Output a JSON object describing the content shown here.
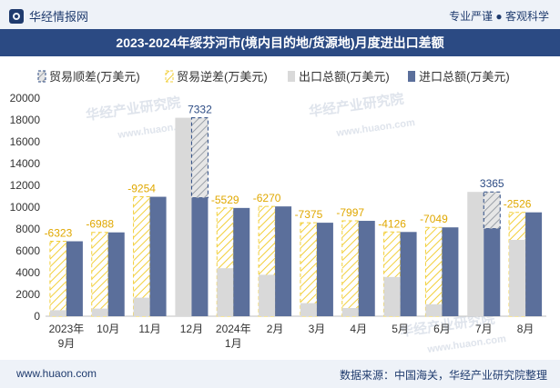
{
  "header": {
    "brand": "华经情报网",
    "tagline": "专业严谨 ● 客观科学",
    "title": "2023-2024年绥芬河市(境内目的地/货源地)月度进出口差额"
  },
  "footer": {
    "site": "www.huaon.com",
    "source": "数据来源：中国海关，华经产业研究院整理"
  },
  "watermarks": [
    "华经产业研究院",
    "www.huaon.com",
    "华经产业研究院",
    "www.huaon.com",
    "华经产业研究院",
    "www.huaon.com"
  ],
  "colors": {
    "brand": "#1f3b6e",
    "title_bg": "#2b4a83",
    "surplus": "#2b4a83",
    "deficit": "#f2cf3a",
    "export": "#d9d9d9",
    "import": "#5b6f9b"
  },
  "chart_data": {
    "type": "bar",
    "title": "2023-2024年绥芬河市(境内目的地/货源地)月度进出口差额",
    "categories": [
      "2023年\n9月",
      "10月",
      "11月",
      "12月",
      "2024年\n1月",
      "2月",
      "3月",
      "4月",
      "5月",
      "6月",
      "7月",
      "8月"
    ],
    "series": [
      {
        "name": "出口总额(万美元)",
        "values": [
          550,
          700,
          1700,
          18200,
          4400,
          3800,
          1200,
          750,
          3600,
          1100,
          11400,
          7000
        ]
      },
      {
        "name": "进口总额(万美元)",
        "values": [
          6873,
          7688,
          10954,
          10868,
          9929,
          10070,
          8575,
          8747,
          7726,
          8149,
          8035,
          9526
        ]
      }
    ],
    "balance": [
      -6323,
      -6988,
      -9254,
      7332,
      -5529,
      -6270,
      -7375,
      -7997,
      -4126,
      -7049,
      3365,
      -2526
    ],
    "balance_labels": [
      "-6323",
      "-6988",
      "-9254",
      "7332",
      "-5529",
      "-6270",
      "-7375",
      "-7997",
      "-4126",
      "-7049",
      "3365",
      "-2526"
    ],
    "legend": [
      "贸易顺差(万美元)",
      "贸易逆差(万美元)",
      "出口总额(万美元)",
      "进口总额(万美元)"
    ],
    "ylim": [
      0,
      20000
    ],
    "yticks": [
      0,
      2000,
      4000,
      6000,
      8000,
      10000,
      12000,
      14000,
      16000,
      18000,
      20000
    ],
    "ytick_labels": [
      "0",
      "2000",
      "4000",
      "6000",
      "8000",
      "10000",
      "12000",
      "14000",
      "16000",
      "18000",
      "20000"
    ],
    "xlabel": "",
    "ylabel": "",
    "legend_position": "top-left"
  }
}
